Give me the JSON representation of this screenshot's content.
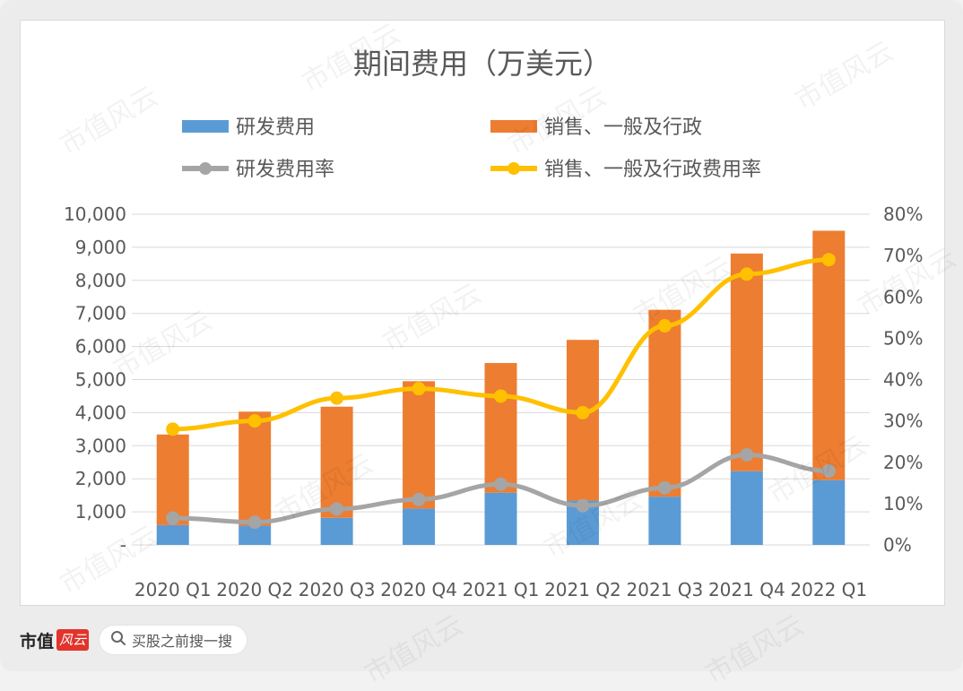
{
  "chart_data": {
    "type": "bar",
    "title": "期间费用（万美元）",
    "categories": [
      "2020 Q1",
      "2020 Q2",
      "2020 Q3",
      "2020 Q4",
      "2021 Q1",
      "2021 Q2",
      "2021 Q3",
      "2021 Q4",
      "2022 Q1"
    ],
    "stacked_bars": [
      {
        "name": "研发费用",
        "color": "#5b9bd5",
        "values": [
          600,
          580,
          820,
          1100,
          1580,
          1340,
          1460,
          2230,
          1960
        ]
      },
      {
        "name": "销售、一般及行政",
        "color": "#ed7d31",
        "values": [
          2740,
          3450,
          3360,
          3850,
          3920,
          4860,
          5650,
          6580,
          7540
        ]
      }
    ],
    "lines": [
      {
        "name": "研发费用率",
        "color": "#a5a5a5",
        "axis": "right",
        "values": [
          6.5,
          5.5,
          8.7,
          11,
          14.7,
          9.5,
          13.8,
          21.8,
          17.9
        ]
      },
      {
        "name": "销售、一般及行政费用率",
        "color": "#ffc000",
        "axis": "right",
        "values": [
          28,
          30,
          35.5,
          37.8,
          36,
          32,
          53,
          65.5,
          69
        ]
      }
    ],
    "y_left": {
      "min": 0,
      "max": 10000,
      "ticks": [
        "-",
        "1,000",
        "2,000",
        "3,000",
        "4,000",
        "5,000",
        "6,000",
        "7,000",
        "8,000",
        "9,000",
        "10,000"
      ]
    },
    "y_right": {
      "min": 0,
      "max": 80,
      "ticks": [
        "0%",
        "10%",
        "20%",
        "30%",
        "40%",
        "50%",
        "60%",
        "70%",
        "80%"
      ]
    },
    "grid": true,
    "legend_position": "top"
  },
  "footer": {
    "brand_text": "市值",
    "brand_stamp": "风云",
    "search_label": "买股之前搜一搜",
    "search_icon": "search-icon"
  },
  "watermark": "市值风云"
}
